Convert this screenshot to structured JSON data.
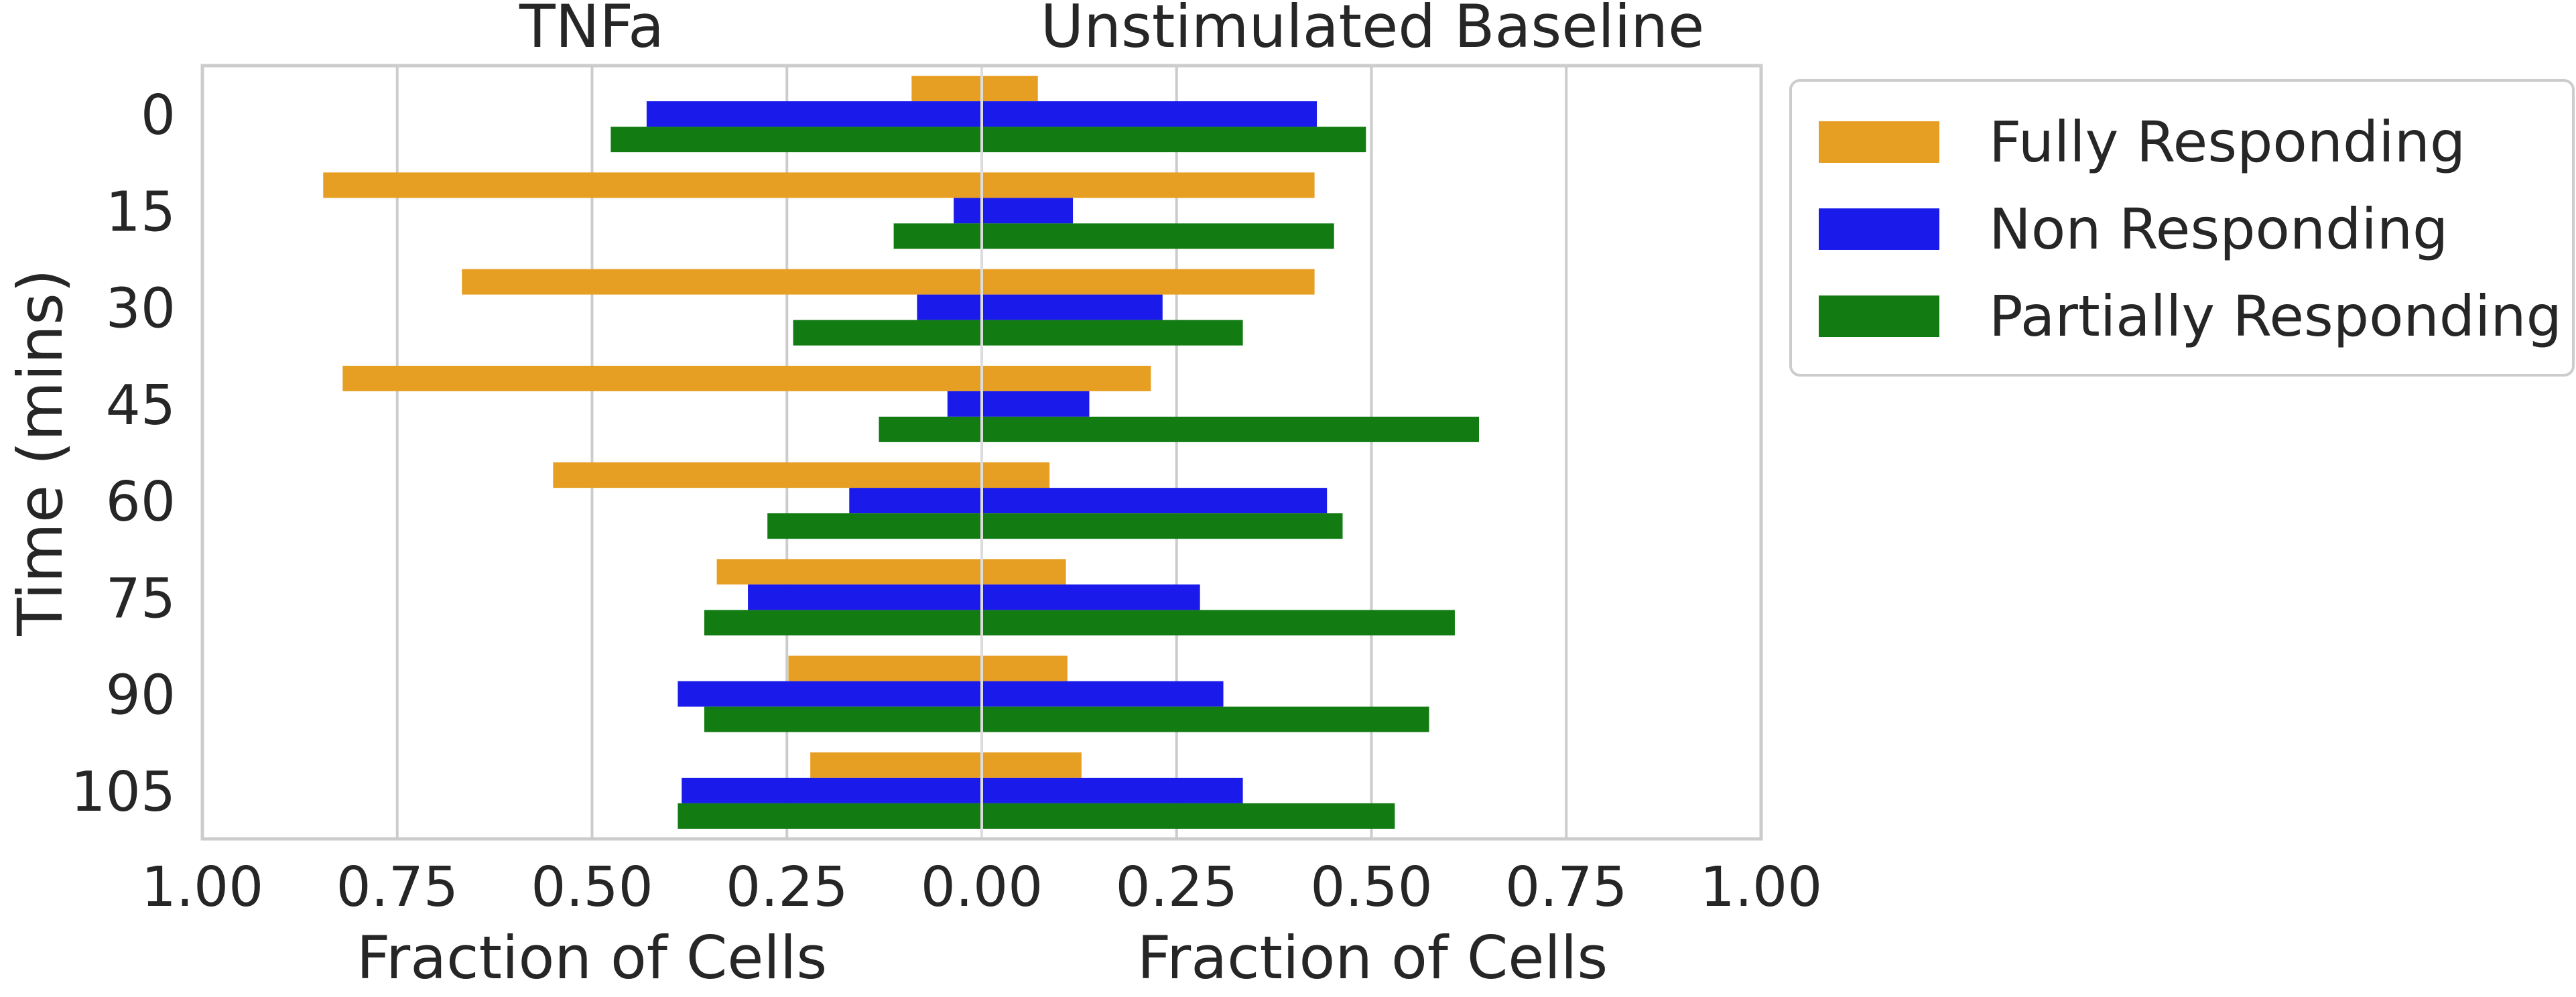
{
  "chart_data": {
    "type": "bar",
    "orientation": "horizontal",
    "layout": "butterfly",
    "panels": [
      {
        "title": "TNFa",
        "xlabel": "Fraction of Cells",
        "direction": "left",
        "xlim": [
          0,
          1
        ],
        "series": [
          {
            "name": "Fully Responding",
            "values": [
              0.09,
              0.845,
              0.667,
              0.82,
              0.55,
              0.34,
              0.248,
              0.22
            ]
          },
          {
            "name": "Non Responding",
            "values": [
              0.43,
              0.036,
              0.083,
              0.044,
              0.17,
              0.3,
              0.39,
              0.385
            ]
          },
          {
            "name": "Partially Responding",
            "values": [
              0.476,
              0.113,
              0.242,
              0.132,
              0.275,
              0.356,
              0.356,
              0.39
            ]
          }
        ]
      },
      {
        "title": "Unstimulated Baseline",
        "xlabel": "Fraction of Cells",
        "direction": "right",
        "xlim": [
          0,
          1
        ],
        "series": [
          {
            "name": "Fully Responding",
            "values": [
              0.072,
              0.427,
              0.427,
              0.217,
              0.087,
              0.108,
              0.11,
              0.128
            ]
          },
          {
            "name": "Non Responding",
            "values": [
              0.43,
              0.117,
              0.232,
              0.138,
              0.443,
              0.28,
              0.31,
              0.335
            ]
          },
          {
            "name": "Partially Responding",
            "values": [
              0.493,
              0.452,
              0.335,
              0.638,
              0.463,
              0.607,
              0.574,
              0.53
            ]
          }
        ]
      }
    ],
    "categories": [
      "0",
      "15",
      "30",
      "45",
      "60",
      "75",
      "90",
      "105"
    ],
    "ylabel": "Time (mins)",
    "xticks": [
      "1.00",
      "0.75",
      "0.50",
      "0.25",
      "0.00",
      "0.25",
      "0.50",
      "0.75",
      "1.00"
    ],
    "legend": {
      "position": "right",
      "entries": [
        "Fully Responding",
        "Non Responding",
        "Partially Responding"
      ]
    },
    "colors": {
      "Fully Responding": "#e69f22",
      "Non Responding": "#1a1aeb",
      "Partially Responding": "#127b12",
      "grid": "#cccccc",
      "axis_frame": "#cccccc",
      "text": "#262626"
    },
    "grid": true
  }
}
